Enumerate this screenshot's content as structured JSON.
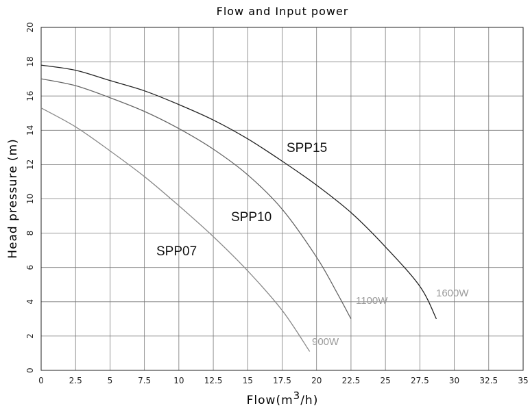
{
  "chart_data": {
    "type": "line",
    "title": "Flow and Input power",
    "xlabel": "Flow(m3/h)",
    "xlabel_parts": {
      "main": "Flow(m",
      "sup": "3",
      "tail": "/h)"
    },
    "ylabel": "Head pressure (m)",
    "xlim": [
      0,
      35
    ],
    "ylim": [
      0,
      20
    ],
    "x_ticks": [
      "0",
      "2.5",
      "5",
      "7.5",
      "10",
      "12.5",
      "15",
      "17.5",
      "20",
      "22.5",
      "25",
      "27.5",
      "30",
      "32.5",
      "35"
    ],
    "y_ticks": [
      "0",
      "2",
      "4",
      "6",
      "8",
      "10",
      "12",
      "14",
      "16",
      "18",
      "20"
    ],
    "grid": true,
    "legend": "none",
    "series": [
      {
        "name": "SPP15",
        "power": "1600W",
        "color": "#222222",
        "x": [
          0,
          2.5,
          5,
          7.5,
          10,
          12.5,
          15,
          17.5,
          20,
          22.5,
          25,
          27.5,
          28.7
        ],
        "y": [
          17.8,
          17.5,
          16.9,
          16.3,
          15.5,
          14.6,
          13.5,
          12.2,
          10.8,
          9.2,
          7.2,
          4.9,
          3.0
        ]
      },
      {
        "name": "SPP10",
        "power": "1100W",
        "color": "#666666",
        "x": [
          0,
          2.5,
          5,
          7.5,
          10,
          12.5,
          15,
          17.5,
          20,
          21.5,
          22.5
        ],
        "y": [
          17.0,
          16.6,
          15.9,
          15.1,
          14.1,
          12.9,
          11.4,
          9.4,
          6.6,
          4.5,
          3.0
        ]
      },
      {
        "name": "SPP07",
        "power": "900W",
        "color": "#8a8a8a",
        "x": [
          0,
          2.5,
          5,
          7.5,
          10,
          12.5,
          15,
          17.5,
          19.5
        ],
        "y": [
          15.3,
          14.2,
          12.8,
          11.3,
          9.6,
          7.8,
          5.8,
          3.5,
          1.1
        ]
      }
    ]
  }
}
